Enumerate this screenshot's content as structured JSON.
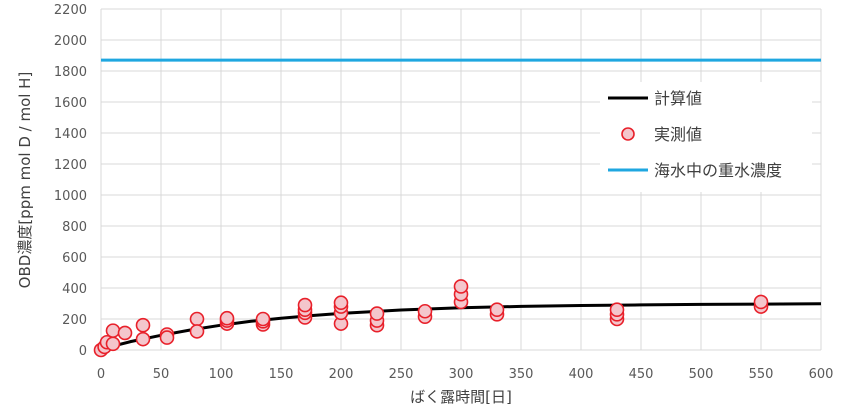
{
  "chart_data": {
    "type": "scatter",
    "xlabel": "ばく露時間[日]",
    "ylabel": "OBD濃度[ppm mol D / mol H]",
    "xlim": [
      0,
      600
    ],
    "ylim": [
      0,
      2200
    ],
    "xticks": [
      0,
      50,
      100,
      150,
      200,
      250,
      300,
      350,
      400,
      450,
      500,
      550,
      600
    ],
    "yticks": [
      0,
      200,
      400,
      600,
      800,
      1000,
      1200,
      1400,
      1600,
      1800,
      2000,
      2200
    ],
    "grid": true,
    "legend_position": "right",
    "series": [
      {
        "name": "計算値",
        "kind": "line",
        "color": "#000000",
        "x": [
          0,
          10,
          25,
          50,
          75,
          100,
          125,
          150,
          175,
          200,
          250,
          300,
          350,
          400,
          450,
          500,
          550,
          600
        ],
        "y": [
          0,
          25,
          55,
          95,
          130,
          160,
          185,
          205,
          222,
          236,
          258,
          272,
          281,
          287,
          291,
          294,
          296,
          298
        ]
      },
      {
        "name": "実測値",
        "kind": "scatter",
        "marker_fill": "#f4c6cc",
        "marker_edge": "#e8202a",
        "x": [
          0,
          3,
          5,
          10,
          10,
          20,
          35,
          35,
          55,
          55,
          80,
          80,
          105,
          105,
          105,
          135,
          135,
          135,
          170,
          170,
          170,
          170,
          200,
          200,
          200,
          200,
          230,
          230,
          230,
          270,
          270,
          300,
          300,
          300,
          330,
          330,
          430,
          430,
          430,
          550,
          550
        ],
        "y": [
          0,
          20,
          50,
          125,
          40,
          110,
          160,
          70,
          100,
          80,
          200,
          120,
          170,
          190,
          205,
          165,
          185,
          200,
          210,
          240,
          260,
          290,
          170,
          240,
          280,
          305,
          160,
          190,
          235,
          215,
          250,
          310,
          360,
          410,
          230,
          260,
          200,
          230,
          260,
          280,
          310
        ]
      },
      {
        "name": "海水中の重水濃度",
        "kind": "hline",
        "color": "#1fa7e0",
        "y": 1870
      }
    ]
  }
}
